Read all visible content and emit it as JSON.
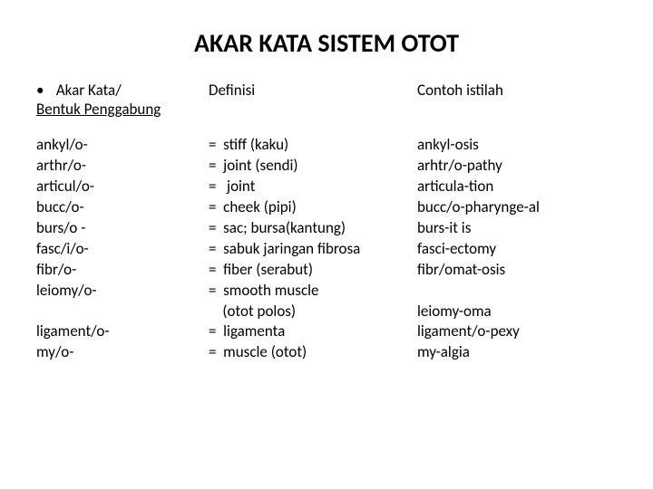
{
  "title": "AKAR KATA SISTEM OTOT",
  "header": {
    "col1_line1_bullet": "•",
    "col1_line1": "Akar Kata/",
    "col1_line2": "Bentuk Penggabung",
    "col2": "Definisi",
    "col3": "Contoh istilah"
  },
  "rows": {
    "r0": {
      "root": "ankyl/o-",
      "def": "=  stiff (kaku)",
      "ex": "ankyl-osis"
    },
    "r1": {
      "root": "arthr/o-",
      "def": "=  joint (sendi)",
      "ex": "arhtr/o-pathy"
    },
    "r2": {
      "root": "articul/o-",
      "def": "=   joint",
      "ex": "articula-tion"
    },
    "r3": {
      "root": "bucc/o-",
      "def": "=  cheek (pipi)",
      "ex": "bucc/o-pharynge-al"
    },
    "r4": {
      "root": "burs/o   -",
      "def": "=  sac; bursa(kantung)",
      "ex": "burs-it is"
    },
    "r5": {
      "root": "fasc/i/o-",
      "def": "=  sabuk jaringan fibrosa",
      "ex": "fasci-ectomy"
    },
    "r6": {
      "root": "fibr/o-",
      "def": "=  fiber (serabut)",
      "ex": "fibr/omat-osis"
    },
    "r7": {
      "root": "leiomy/o-",
      "def": "=  smooth muscle",
      "ex": ""
    },
    "r8": {
      "root": "",
      "def": "    (otot polos)",
      "ex": "leiomy-oma"
    },
    "r9": {
      "root": "ligament/o-",
      "def": "=  ligamenta",
      "ex": "ligament/o-pexy"
    },
    "r10": {
      "root": "my/o-",
      "def": "=  muscle (otot)",
      "ex": "my-algia"
    }
  }
}
